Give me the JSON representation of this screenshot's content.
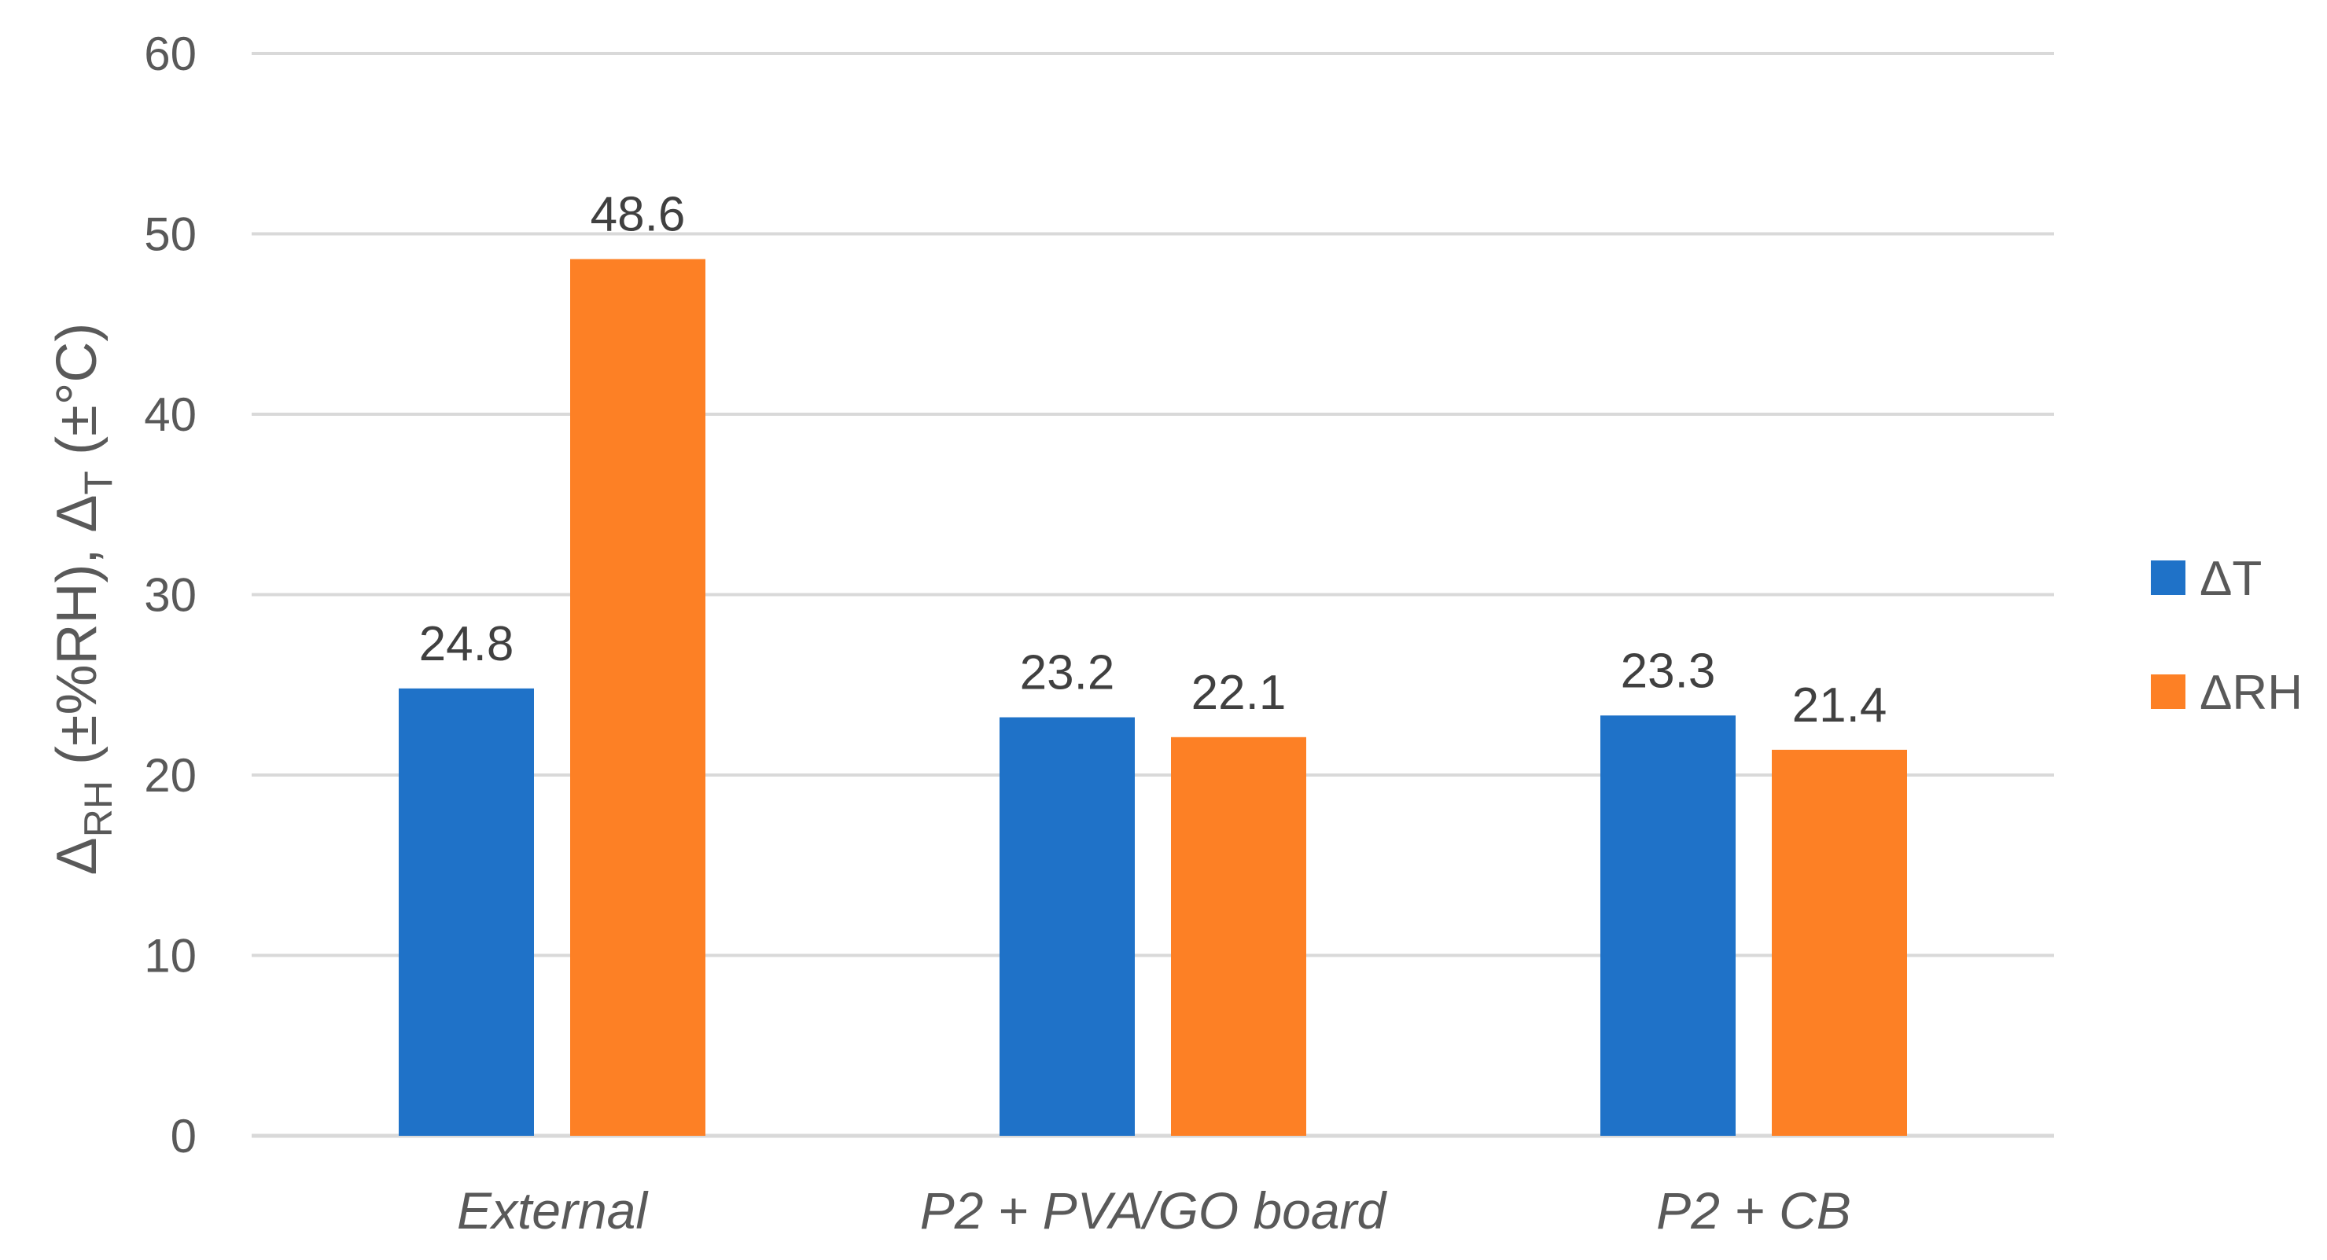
{
  "chart_data": {
    "type": "bar",
    "title": "",
    "xlabel": "",
    "ylabel": "ΔRH (±%RH), ΔT (±°C)",
    "ylabel_parts": {
      "delta_rh": "Δ",
      "rh_sub": "RH",
      "rh_unit": " (±%RH), ",
      "delta_t": "Δ",
      "t_sub": "T",
      "t_unit": " (±°C)"
    },
    "categories": [
      "External",
      "P2 + PVA/GO board",
      "P2 + CB"
    ],
    "series": [
      {
        "name": "ΔT",
        "color": "#1f72c8",
        "values": [
          24.8,
          23.2,
          23.3
        ]
      },
      {
        "name": "ΔRH",
        "color": "#fd8025",
        "values": [
          48.6,
          22.1,
          21.4
        ]
      }
    ],
    "ylim": [
      0,
      60
    ],
    "yticks": [
      0,
      10,
      20,
      30,
      40,
      50,
      60
    ],
    "grid": true,
    "legend_position": "right",
    "gridline_color": "#d9d9d9"
  }
}
